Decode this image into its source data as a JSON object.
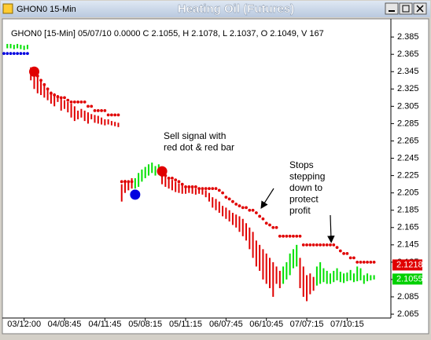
{
  "window": {
    "title": "GHON0 15-Min"
  },
  "chart_data": {
    "type": "hl",
    "title": "Heating Oil (Futures)",
    "subtitle": "GHON0 [15-Min] 05/07/10  0.0000 C 2.1055, H 2.1078, L 2.1037, O 2.1049, V 167",
    "xlim": [
      0,
      115
    ],
    "ylim": [
      2.056,
      2.396
    ],
    "yticks": [
      2.385,
      2.365,
      2.345,
      2.325,
      2.305,
      2.285,
      2.265,
      2.245,
      2.225,
      2.205,
      2.185,
      2.165,
      2.145,
      2.125,
      2.105,
      2.085,
      2.065
    ],
    "xticks": [
      {
        "value": 6,
        "label": "03/12:00"
      },
      {
        "value": 18,
        "label": "04/08:45"
      },
      {
        "value": 30,
        "label": "04/11:45"
      },
      {
        "value": 42,
        "label": "05/08:15"
      },
      {
        "value": 54,
        "label": "05/11:15"
      },
      {
        "value": 66,
        "label": "06/07:45"
      },
      {
        "value": 78,
        "label": "06/10:45"
      },
      {
        "value": 90,
        "label": "07/07:15"
      },
      {
        "value": 102,
        "label": "07/10:15"
      }
    ],
    "grid": false,
    "series": [
      {
        "color": "#00e000",
        "x": [
          1,
          2,
          3,
          4,
          5,
          6,
          7,
          39,
          40,
          41,
          42,
          43,
          44,
          45,
          46,
          83,
          84,
          85,
          86,
          87,
          93,
          94,
          95,
          96,
          97,
          98,
          99,
          100,
          101,
          102,
          103,
          104,
          105,
          106,
          107,
          108,
          109,
          110
        ],
        "high": [
          2.377,
          2.377,
          2.376,
          2.377,
          2.376,
          2.375,
          2.376,
          2.222,
          2.228,
          2.232,
          2.235,
          2.238,
          2.24,
          2.236,
          2.238,
          2.12,
          2.125,
          2.135,
          2.14,
          2.145,
          2.12,
          2.125,
          2.118,
          2.115,
          2.112,
          2.115,
          2.118,
          2.114,
          2.112,
          2.113,
          2.116,
          2.112,
          2.12,
          2.118,
          2.11,
          2.112,
          2.11,
          2.11
        ],
        "low": [
          2.372,
          2.372,
          2.371,
          2.372,
          2.371,
          2.37,
          2.371,
          2.21,
          2.212,
          2.218,
          2.222,
          2.225,
          2.228,
          2.225,
          2.226,
          2.1,
          2.105,
          2.11,
          2.118,
          2.12,
          2.098,
          2.1,
          2.102,
          2.1,
          2.1,
          2.102,
          2.104,
          2.102,
          2.101,
          2.103,
          2.104,
          2.102,
          2.103,
          2.104,
          2.1,
          2.103,
          2.104,
          2.105
        ]
      },
      {
        "color": "#e00000",
        "x": [
          8,
          9,
          10,
          11,
          12,
          13,
          14,
          15,
          16,
          17,
          18,
          19,
          20,
          21,
          22,
          23,
          24,
          25,
          26,
          27,
          28,
          29,
          30,
          31,
          32,
          33,
          34,
          35,
          36,
          37,
          38,
          47,
          48,
          49,
          50,
          51,
          52,
          53,
          54,
          55,
          56,
          57,
          58,
          59,
          60,
          61,
          62,
          63,
          64,
          65,
          66,
          67,
          68,
          69,
          70,
          71,
          72,
          73,
          74,
          75,
          76,
          77,
          78,
          79,
          80,
          81,
          82,
          88,
          89,
          90,
          91,
          92
        ],
        "high": [
          2.35,
          2.345,
          2.34,
          2.335,
          2.33,
          2.325,
          2.322,
          2.32,
          2.318,
          2.315,
          2.312,
          2.31,
          2.308,
          2.305,
          2.3,
          2.302,
          2.3,
          2.298,
          2.296,
          2.295,
          2.294,
          2.292,
          2.29,
          2.29,
          2.288,
          2.287,
          2.286,
          2.215,
          2.22,
          2.218,
          2.222,
          2.232,
          2.225,
          2.222,
          2.22,
          2.218,
          2.216,
          2.214,
          2.213,
          2.212,
          2.211,
          2.21,
          2.21,
          2.209,
          2.208,
          2.205,
          2.2,
          2.198,
          2.195,
          2.19,
          2.188,
          2.185,
          2.182,
          2.18,
          2.178,
          2.175,
          2.17,
          2.165,
          2.16,
          2.15,
          2.145,
          2.14,
          2.135,
          2.13,
          2.125,
          2.12,
          2.115,
          2.13,
          2.12,
          2.11,
          2.112,
          2.108
        ],
        "low": [
          2.335,
          2.325,
          2.32,
          2.318,
          2.315,
          2.312,
          2.308,
          2.305,
          2.31,
          2.3,
          2.302,
          2.298,
          2.292,
          2.288,
          2.29,
          2.292,
          2.288,
          2.285,
          2.29,
          2.286,
          2.285,
          2.284,
          2.283,
          2.284,
          2.283,
          2.282,
          2.281,
          2.195,
          2.205,
          2.208,
          2.21,
          2.215,
          2.212,
          2.21,
          2.208,
          2.206,
          2.205,
          2.204,
          2.204,
          2.205,
          2.204,
          2.203,
          2.204,
          2.203,
          2.2,
          2.195,
          2.188,
          2.185,
          2.182,
          2.178,
          2.175,
          2.172,
          2.168,
          2.165,
          2.16,
          2.155,
          2.15,
          2.14,
          2.13,
          2.12,
          2.115,
          2.105,
          2.1,
          2.095,
          2.085,
          2.1,
          2.095,
          2.095,
          2.085,
          2.08,
          2.088,
          2.092
        ]
      },
      {
        "color": "#0000e0",
        "x": [
          0,
          1,
          2,
          3,
          4,
          5,
          6,
          7
        ],
        "values": [
          2.366,
          2.366,
          2.366,
          2.366,
          2.366,
          2.366,
          2.366,
          2.366
        ]
      },
      {
        "color": "#e00000",
        "x": [
          9,
          10,
          11,
          12,
          13,
          14,
          15,
          16,
          17,
          18,
          19,
          20,
          21,
          22,
          23,
          24,
          25,
          26,
          27,
          28,
          29,
          30,
          31,
          32,
          33,
          34,
          35,
          36,
          37,
          38,
          47,
          48,
          49,
          50,
          51,
          52,
          53,
          54,
          55,
          56,
          57,
          58,
          59,
          60,
          61,
          62,
          63,
          64,
          65,
          66,
          67,
          68,
          69,
          70,
          71,
          72,
          73,
          74,
          75,
          76,
          77,
          78,
          79,
          80,
          81,
          82,
          83,
          84,
          85,
          86,
          87,
          88,
          89,
          90,
          91,
          92,
          93,
          94,
          95,
          96,
          97,
          98,
          99,
          100,
          101,
          102,
          103,
          104,
          105,
          106,
          107,
          108,
          109,
          110
        ],
        "values": [
          2.345,
          2.34,
          2.335,
          2.33,
          2.325,
          2.32,
          2.318,
          2.316,
          2.315,
          2.315,
          2.312,
          2.31,
          2.31,
          2.31,
          2.31,
          2.31,
          2.305,
          2.305,
          2.3,
          2.3,
          2.3,
          2.3,
          2.295,
          2.295,
          2.295,
          2.295,
          2.218,
          2.218,
          2.218,
          2.218,
          2.225,
          2.225,
          2.222,
          2.222,
          2.22,
          2.218,
          2.215,
          2.212,
          2.212,
          2.212,
          2.212,
          2.21,
          2.21,
          2.21,
          2.21,
          2.21,
          2.21,
          2.208,
          2.205,
          2.2,
          2.198,
          2.195,
          2.192,
          2.19,
          2.188,
          2.188,
          2.185,
          2.185,
          2.182,
          2.178,
          2.175,
          2.17,
          2.168,
          2.165,
          2.165,
          2.155,
          2.155,
          2.155,
          2.155,
          2.155,
          2.155,
          2.155,
          2.145,
          2.145,
          2.145,
          2.145,
          2.145,
          2.145,
          2.145,
          2.145,
          2.145,
          2.145,
          2.142,
          2.138,
          2.135,
          2.135,
          2.13,
          2.13,
          2.125,
          2.125,
          2.125,
          2.125,
          2.125,
          2.125
        ]
      }
    ],
    "signals": [
      {
        "x": 9,
        "value": 2.345,
        "color": "#e00000"
      },
      {
        "x": 39,
        "value": 2.203,
        "color": "#0000e0"
      },
      {
        "x": 47,
        "value": 2.23,
        "color": "#e00000"
      }
    ],
    "price_labels": [
      {
        "value": 2.1218,
        "label": "2.1218",
        "color": "#e00000"
      },
      {
        "value": 2.1055,
        "label": "2.1055",
        "color": "#00d000"
      }
    ],
    "annotations": [
      {
        "lines": [
          "Sell signal with",
          "red dot & red bar"
        ]
      },
      {
        "lines": [
          "Stops",
          "stepping",
          "down to",
          "protect",
          "profit"
        ]
      }
    ]
  }
}
